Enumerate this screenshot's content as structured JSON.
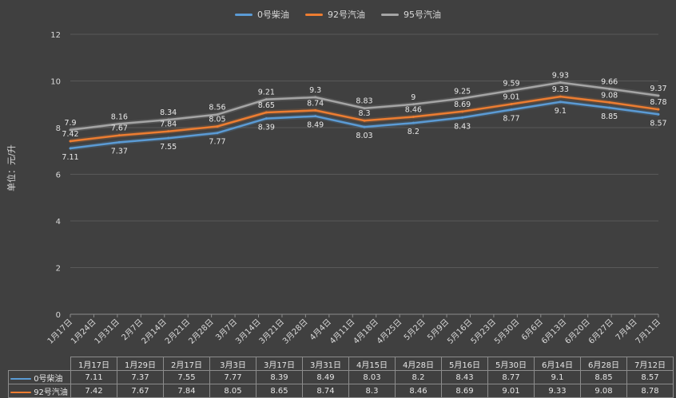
{
  "chart_data": {
    "type": "line",
    "ylabel": "单位：元/升",
    "ylim": [
      0,
      12
    ],
    "yticks": [
      0,
      2,
      4,
      6,
      8,
      10,
      12
    ],
    "x_axis_ticks": [
      "1月17日",
      "1月24日",
      "1月31日",
      "2月7日",
      "2月14日",
      "2月21日",
      "2月28日",
      "3月7日",
      "3月14日",
      "3月21日",
      "3月28日",
      "4月4日",
      "4月11日",
      "4月18日",
      "4月25日",
      "5月2日",
      "5月9日",
      "5月16日",
      "5月23日",
      "5月30日",
      "6月6日",
      "6月13日",
      "6月20日",
      "6月27日",
      "7月4日",
      "7月11日"
    ],
    "categories": [
      "1月17日",
      "1月29日",
      "2月17日",
      "3月3日",
      "3月17日",
      "3月31日",
      "4月15日",
      "4月28日",
      "5月16日",
      "5月30日",
      "6月14日",
      "6月28日",
      "7月12日"
    ],
    "series": [
      {
        "name": "0号柴油",
        "color": "#5b9bd5",
        "values": [
          7.11,
          7.37,
          7.55,
          7.77,
          8.39,
          8.49,
          8.03,
          8.2,
          8.43,
          8.77,
          9.1,
          8.85,
          8.57
        ]
      },
      {
        "name": "92号汽油",
        "color": "#ed7d31",
        "values": [
          7.42,
          7.67,
          7.84,
          8.05,
          8.65,
          8.74,
          8.3,
          8.46,
          8.69,
          9.01,
          9.33,
          9.08,
          8.78
        ]
      },
      {
        "name": "95号汽油",
        "color": "#a5a5a5",
        "values": [
          7.9,
          8.16,
          8.34,
          8.56,
          9.21,
          9.3,
          8.83,
          9.0,
          9.25,
          9.59,
          9.93,
          9.66,
          9.37
        ]
      }
    ],
    "point_labels": {
      "0号柴油": [
        "7.11",
        "7.37",
        "7.55",
        "7.77",
        "8.39",
        "8.49",
        "8.03",
        "8.2",
        "8.43",
        "8.77",
        "9.1",
        "8.85",
        "8.57"
      ],
      "92号汽油": [
        "7.42",
        "7.67",
        "7.84",
        "8.05",
        "8.65",
        "8.74",
        "8.3",
        "8.46",
        "8.69",
        "9.01",
        "9.33",
        "9.08",
        "8.78"
      ],
      "95号汽油": [
        "7.9",
        "8.16",
        "8.34",
        "8.56",
        "9.21",
        "9.3",
        "8.83",
        "9",
        "9.25",
        "9.59",
        "9.93",
        "9.66",
        "9.37"
      ]
    },
    "grid": true,
    "legend": "top-center"
  },
  "table": {
    "headers": [
      "1月17日",
      "1月29日",
      "2月17日",
      "3月3日",
      "3月17日",
      "3月31日",
      "4月15日",
      "4月28日",
      "5月16日",
      "5月30日",
      "6月14日",
      "6月28日",
      "7月12日"
    ],
    "rows": [
      {
        "name": "0号柴油",
        "color": "#5b9bd5",
        "values": [
          "7.11",
          "7.37",
          "7.55",
          "7.77",
          "8.39",
          "8.49",
          "8.03",
          "8.2",
          "8.43",
          "8.77",
          "9.1",
          "8.85",
          "8.57"
        ]
      },
      {
        "name": "92号汽油",
        "color": "#ed7d31",
        "values": [
          "7.42",
          "7.67",
          "7.84",
          "8.05",
          "8.65",
          "8.74",
          "8.3",
          "8.46",
          "8.69",
          "9.01",
          "9.33",
          "9.08",
          "8.78"
        ]
      }
    ]
  }
}
